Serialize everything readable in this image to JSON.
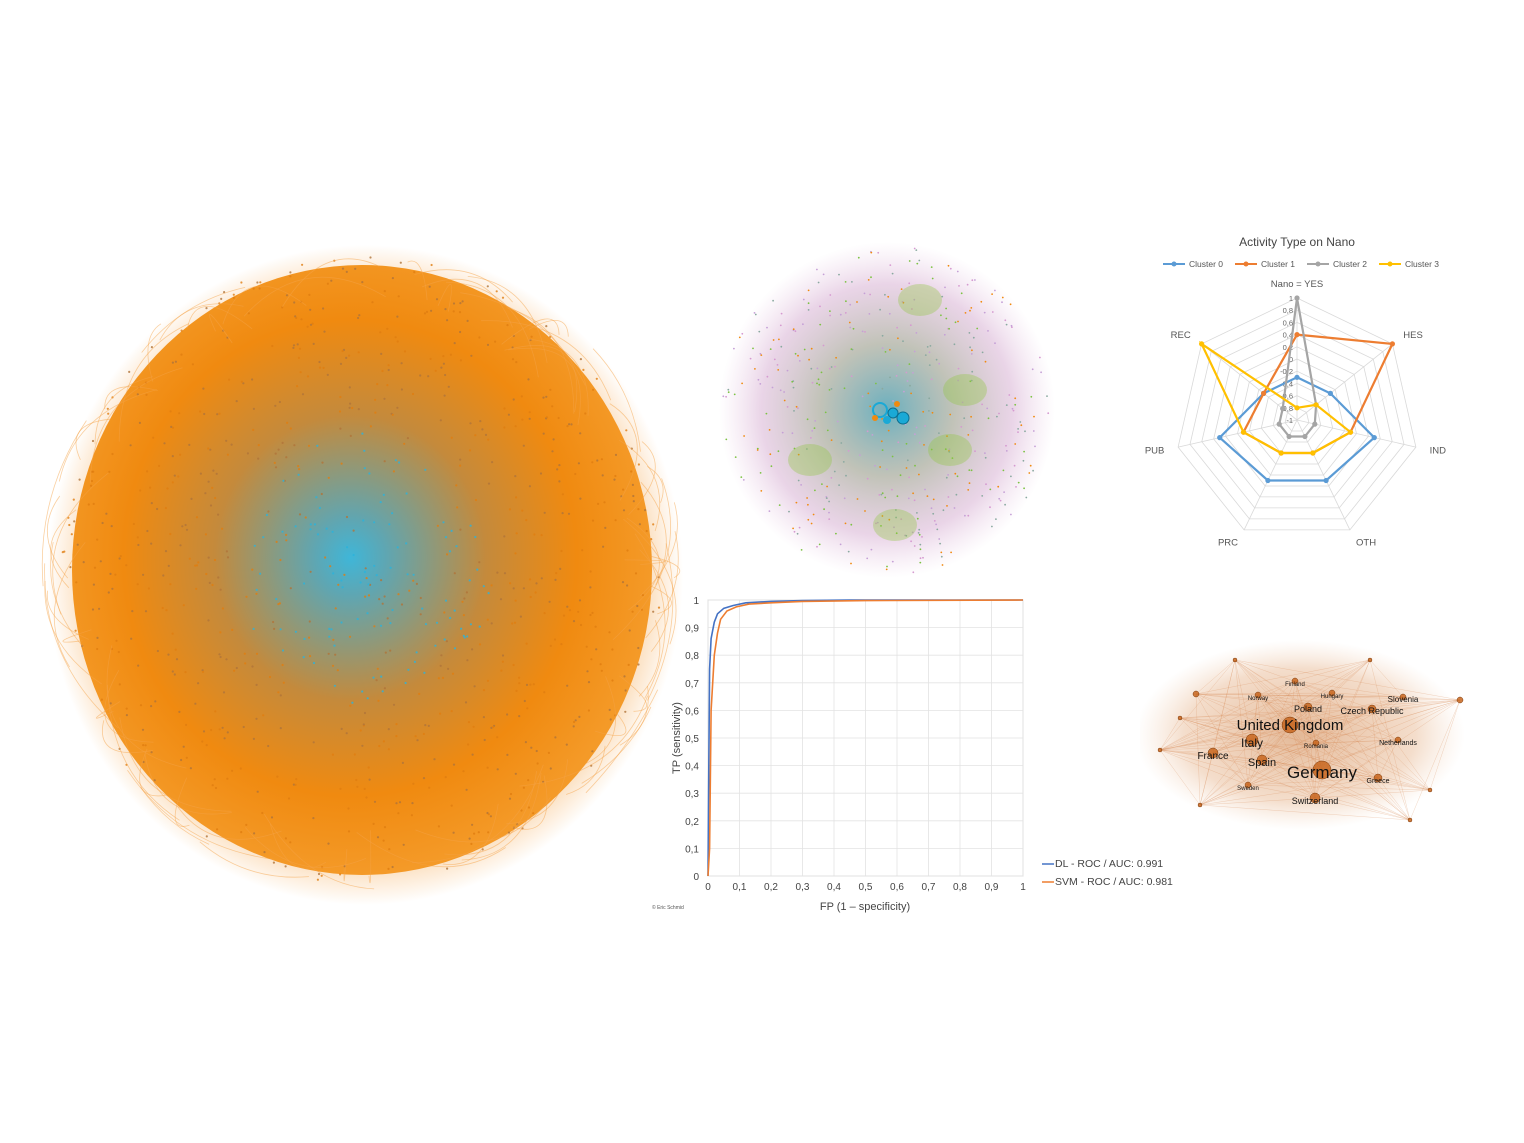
{
  "radar": {
    "title": "Activity Type on Nano",
    "legend": [
      "Cluster 0",
      "Cluster 1",
      "Cluster 2",
      "Cluster 3"
    ],
    "colors": [
      "#5b9bd5",
      "#ed7d31",
      "#a5a5a5",
      "#ffc000"
    ],
    "axes": [
      "Nano = YES",
      "HES",
      "IND",
      "OTH",
      "PRC",
      "PUB",
      "REC"
    ],
    "ticks": [
      "1",
      "0,8",
      "0,6",
      "0,4",
      "0,2",
      "0",
      "-0,2",
      "-0,4",
      "-0,6",
      "-0,8",
      "-1"
    ]
  },
  "chart_data": [
    {
      "type": "radar",
      "title": "Activity Type on Nano",
      "axes": [
        "Nano = YES",
        "HES",
        "IND",
        "OTH",
        "PRC",
        "PUB",
        "REC"
      ],
      "rlim": [
        -1,
        1
      ],
      "legend_position": "top",
      "series": [
        {
          "name": "Cluster 0",
          "values": [
            -0.3,
            -0.3,
            0.3,
            0.1,
            0.1,
            0.3,
            -0.3
          ]
        },
        {
          "name": "Cluster 1",
          "values": [
            0.4,
            1.0,
            -0.1,
            -0.4,
            -0.4,
            -0.1,
            -0.3
          ]
        },
        {
          "name": "Cluster 2",
          "values": [
            1.0,
            -0.6,
            -0.7,
            -0.7,
            -0.7,
            -0.7,
            -0.7
          ]
        },
        {
          "name": "Cluster 3",
          "values": [
            -0.8,
            -0.6,
            -0.1,
            -0.4,
            -0.4,
            -0.1,
            1.0
          ]
        }
      ]
    },
    {
      "type": "line",
      "xlabel": "FP (1 – specificity)",
      "ylabel": "TP (sensitivity)",
      "xlim": [
        0,
        1
      ],
      "ylim": [
        0,
        1
      ],
      "grid": true,
      "legend_position": "bottom-right outside",
      "x_ticks": [
        "0",
        "0,1",
        "0,2",
        "0,3",
        "0,4",
        "0,5",
        "0,6",
        "0,7",
        "0,8",
        "0,9",
        "1"
      ],
      "y_ticks": [
        "0",
        "0,1",
        "0,2",
        "0,3",
        "0,4",
        "0,5",
        "0,6",
        "0,7",
        "0,8",
        "0,9",
        "1"
      ],
      "series": [
        {
          "name": "DL - ROC / AUC: 0.991",
          "x": [
            0,
            0.002,
            0.005,
            0.01,
            0.02,
            0.03,
            0.05,
            0.08,
            0.12,
            0.2,
            0.3,
            0.45,
            1
          ],
          "y": [
            0,
            0.3,
            0.75,
            0.86,
            0.92,
            0.95,
            0.97,
            0.98,
            0.99,
            0.995,
            0.998,
            1,
            1
          ]
        },
        {
          "name": "SVM - ROC / AUC: 0.981",
          "x": [
            0,
            0.005,
            0.01,
            0.02,
            0.03,
            0.04,
            0.06,
            0.09,
            0.13,
            0.2,
            0.3,
            0.5,
            1
          ],
          "y": [
            0,
            0.1,
            0.6,
            0.8,
            0.88,
            0.93,
            0.96,
            0.975,
            0.985,
            0.99,
            0.995,
            0.998,
            1
          ]
        }
      ],
      "colors": [
        "#4472c4",
        "#ed7d31"
      ]
    }
  ],
  "roc": {
    "xlabel": "FP (1 – specificity)",
    "ylabel": "TP (sensitivity)",
    "legend": [
      "DL - ROC / AUC: 0.991",
      "SVM - ROC / AUC: 0.981"
    ]
  },
  "country_network": {
    "labels": [
      {
        "text": "Germany",
        "size": "xl"
      },
      {
        "text": "United Kingdom",
        "size": "l"
      },
      {
        "text": "Italy",
        "size": "m"
      },
      {
        "text": "Spain",
        "size": "m"
      },
      {
        "text": "France",
        "size": "s"
      },
      {
        "text": "Poland",
        "size": "s"
      },
      {
        "text": "Czech Republic",
        "size": "s"
      },
      {
        "text": "Switzerland",
        "size": "s"
      },
      {
        "text": "Slovenia",
        "size": "s"
      },
      {
        "text": "Netherlands",
        "size": "xs"
      },
      {
        "text": "Romania",
        "size": "xs"
      },
      {
        "text": "Norway",
        "size": "xs"
      },
      {
        "text": "Hungary",
        "size": "xs"
      },
      {
        "text": "Finland",
        "size": "xs"
      },
      {
        "text": "Sweden",
        "size": "xs"
      },
      {
        "text": "Greece",
        "size": "xs"
      }
    ]
  },
  "credit": "© Eric Schmid"
}
